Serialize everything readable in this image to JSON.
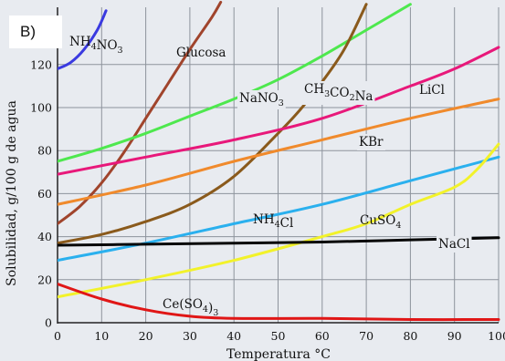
{
  "panel_label": "B)",
  "chart_data": {
    "type": "line",
    "xlabel": "Temperatura °C",
    "ylabel": "Solubilidad, g/100 g de agua",
    "xlim": [
      0,
      100
    ],
    "ylim": [
      0,
      140
    ],
    "x_ticks": [
      "0",
      "10",
      "20",
      "30",
      "40",
      "50",
      "60",
      "70",
      "80",
      "90",
      "100"
    ],
    "y_ticks": [
      "0",
      "20",
      "40",
      "60",
      "80",
      "100",
      "120"
    ],
    "grid": true,
    "series": [
      {
        "name": "NH4NO3",
        "label_parts": [
          [
            "NH",
            ""
          ],
          [
            "4",
            "sub"
          ],
          [
            "NO",
            ""
          ],
          [
            "3",
            "sub"
          ]
        ],
        "color": "#3a3ae0",
        "x": [
          0,
          3,
          6,
          9,
          11
        ],
        "y": [
          118,
          121,
          127,
          136,
          145
        ]
      },
      {
        "name": "Glucosa",
        "label_parts": [
          [
            "Glucosa",
            ""
          ]
        ],
        "color": "#a0442c",
        "x": [
          0,
          5,
          10,
          15,
          20,
          25,
          30,
          35,
          37
        ],
        "y": [
          46,
          54,
          65,
          79,
          95,
          111,
          127,
          142,
          149
        ]
      },
      {
        "name": "NaNO3",
        "label_parts": [
          [
            "NaNO",
            ""
          ],
          [
            "3",
            "sub"
          ]
        ],
        "color": "#4ee84e",
        "x": [
          0,
          10,
          20,
          30,
          40,
          50,
          60,
          70,
          80
        ],
        "y": [
          75,
          81,
          88,
          96,
          104,
          113,
          124,
          136,
          148
        ]
      },
      {
        "name": "CH3CO2Na",
        "label_parts": [
          [
            "CH",
            ""
          ],
          [
            "3",
            "sub"
          ],
          [
            "CO",
            ""
          ],
          [
            "2",
            "sub"
          ],
          [
            "Na",
            ""
          ]
        ],
        "color": "#8a5a1c",
        "x": [
          0,
          10,
          20,
          30,
          40,
          50,
          55,
          60,
          65,
          70
        ],
        "y": [
          37,
          41,
          47,
          55,
          68,
          88,
          99,
          112,
          127,
          148
        ]
      },
      {
        "name": "LiCl",
        "label_parts": [
          [
            "LiCl",
            ""
          ]
        ],
        "color": "#e8187a",
        "x": [
          0,
          20,
          40,
          60,
          80,
          90,
          100
        ],
        "y": [
          69,
          77,
          85,
          95,
          110,
          118,
          128
        ]
      },
      {
        "name": "KBr",
        "label_parts": [
          [
            "KBr",
            ""
          ]
        ],
        "color": "#f08a2c",
        "x": [
          0,
          20,
          40,
          60,
          80,
          100
        ],
        "y": [
          55,
          64,
          75,
          85,
          95,
          104
        ]
      },
      {
        "name": "NH4Cl",
        "label_parts": [
          [
            "NH",
            ""
          ],
          [
            "4",
            "sub"
          ],
          [
            "Cl",
            ""
          ]
        ],
        "color": "#2ab0ee",
        "x": [
          0,
          20,
          40,
          60,
          80,
          100
        ],
        "y": [
          29,
          37,
          46,
          55,
          66,
          77
        ]
      },
      {
        "name": "CuSO4",
        "label_parts": [
          [
            "CuSO",
            ""
          ],
          [
            "4",
            "sub"
          ]
        ],
        "color": "#f2f22a",
        "x": [
          0,
          20,
          40,
          60,
          70,
          80,
          90,
          95,
          100
        ],
        "y": [
          12,
          20,
          29,
          40,
          46,
          55,
          63,
          71,
          83
        ]
      },
      {
        "name": "NaCl",
        "label_parts": [
          [
            "NaCl",
            ""
          ]
        ],
        "color": "#050505",
        "x": [
          0,
          20,
          40,
          60,
          80,
          100
        ],
        "y": [
          36,
          36.5,
          37,
          37.5,
          38.5,
          39.5
        ]
      },
      {
        "name": "Ce(SO4)3",
        "label_parts": [
          [
            "Ce(SO",
            ""
          ],
          [
            "4",
            "sub"
          ],
          [
            ")",
            ""
          ],
          [
            "3",
            "sub"
          ]
        ],
        "color": "#e01616",
        "x": [
          0,
          10,
          20,
          30,
          40,
          60,
          80,
          100
        ],
        "y": [
          18,
          11,
          6,
          3,
          2,
          2,
          1.5,
          1.5
        ]
      }
    ]
  }
}
